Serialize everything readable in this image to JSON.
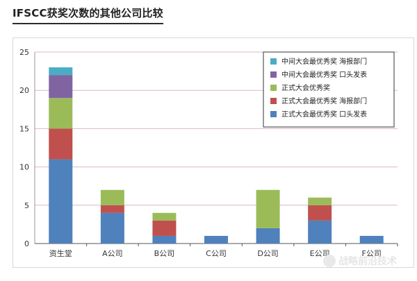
{
  "title": "IFSCC获奖次数的其他公司比较",
  "watermark": "战略前沿技术",
  "chart_data": {
    "type": "bar",
    "stacked": true,
    "categories": [
      "资生堂",
      "A公司",
      "B公司",
      "C公司",
      "D公司",
      "E公司",
      "F公司"
    ],
    "highlight_category": "资生堂",
    "highlight_color": "#c0504d",
    "ylim": [
      0,
      25
    ],
    "yticks": [
      0,
      5,
      10,
      15,
      20,
      25
    ],
    "grid": true,
    "legend_position": "top-right",
    "series": [
      {
        "name": "正式大会最优秀奖 口头发表",
        "color": "#4f81bd",
        "values": [
          11,
          4,
          1,
          1,
          2,
          3,
          1
        ]
      },
      {
        "name": "正式大会最优秀奖 海报部门",
        "color": "#c0504d",
        "values": [
          4,
          1,
          2,
          0,
          0,
          2,
          0
        ]
      },
      {
        "name": "正式大会优秀奖",
        "color": "#9bbb59",
        "values": [
          4,
          2,
          1,
          0,
          5,
          1,
          0
        ]
      },
      {
        "name": "中间大会最优秀奖 口头发表",
        "color": "#8064a2",
        "values": [
          3,
          0,
          0,
          0,
          0,
          0,
          0
        ]
      },
      {
        "name": "中间大会最优秀奖 海报部门",
        "color": "#4bacc6",
        "values": [
          1,
          0,
          0,
          0,
          0,
          0,
          0
        ]
      }
    ]
  }
}
